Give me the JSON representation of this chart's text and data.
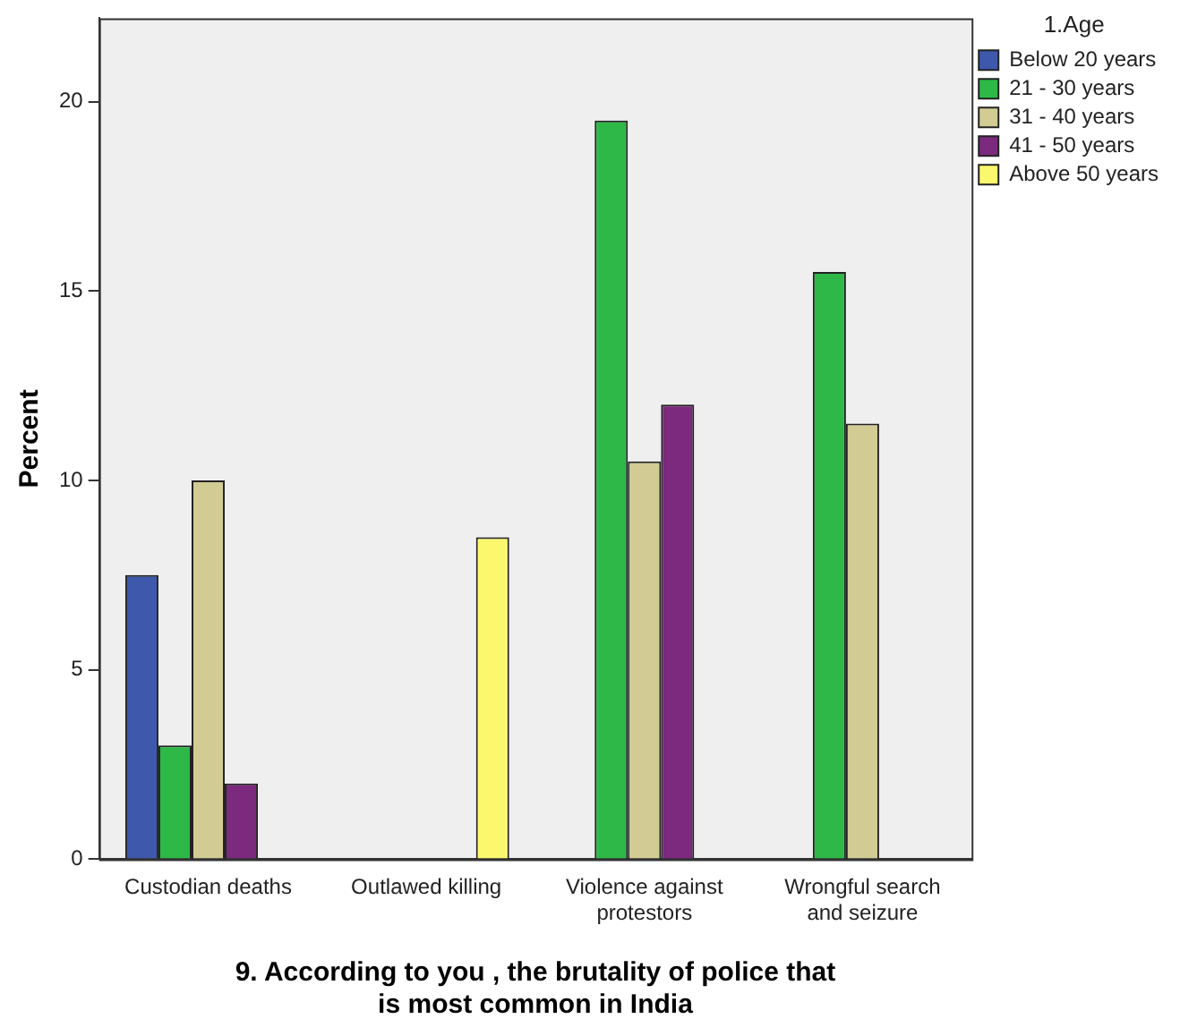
{
  "chart_data": {
    "type": "bar",
    "categories": [
      "Custodian deaths",
      "Outlawed killing",
      "Violence against protestors",
      "Wrongful search and seizure"
    ],
    "series": [
      {
        "name": "Below 20 years",
        "color": "#3e58ac",
        "values": [
          7.5,
          0,
          0,
          0
        ]
      },
      {
        "name": "21 - 30 years",
        "color": "#2eb848",
        "values": [
          3,
          0,
          19.5,
          15.5
        ]
      },
      {
        "name": "31 - 40 years",
        "color": "#d2cc94",
        "values": [
          10,
          0,
          10.5,
          11.5
        ]
      },
      {
        "name": "41 - 50 years",
        "color": "#7b2a7e",
        "values": [
          2,
          0,
          12,
          0
        ]
      },
      {
        "name": "Above 50 years",
        "color": "#fbf86e",
        "values": [
          0,
          8.5,
          0,
          0
        ]
      }
    ],
    "xlabel": "9. According to you , the brutality of police that is most common in India",
    "ylabel": "Percent",
    "legend_title": "1.Age",
    "ylim": [
      0,
      22.2
    ],
    "yticks": [
      0,
      5,
      10,
      15,
      20
    ],
    "grid": false,
    "legend": "top right"
  }
}
